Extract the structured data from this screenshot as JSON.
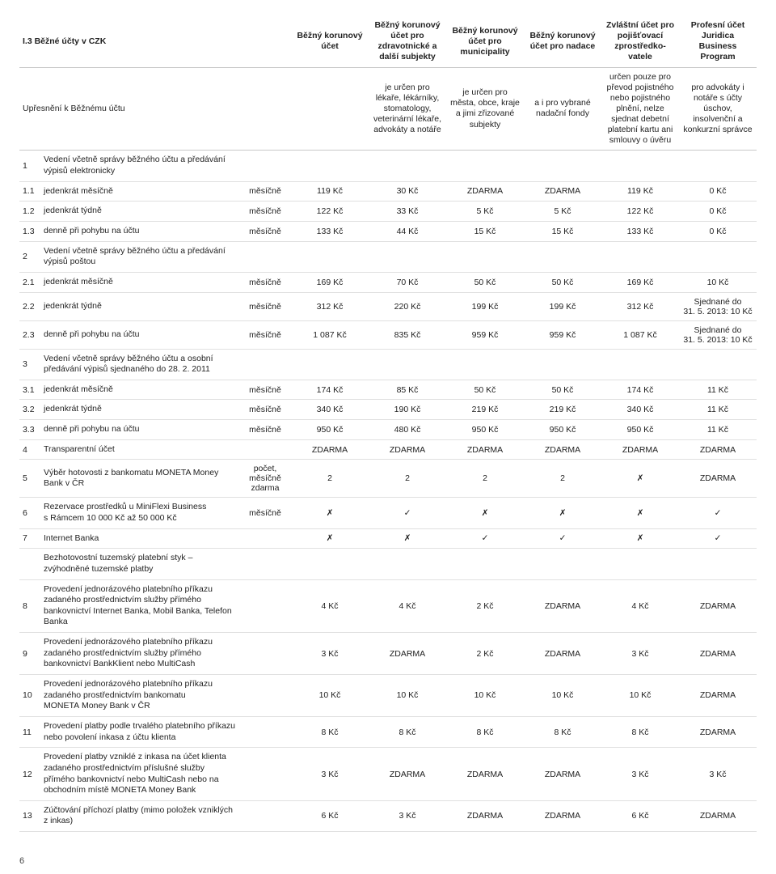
{
  "title": "I.3 Běžné účty v CZK",
  "subtitle": "Upřesnění k Běžnému účtu",
  "pageNumber": "6",
  "col_widths": {
    "num": 26,
    "desc": 260,
    "freq": 64,
    "val": 96
  },
  "columns": [
    {
      "head1": "Běžný korunový účet",
      "head2": ""
    },
    {
      "head1": "Běžný korunový účet pro zdravotnické a další subjekty",
      "head2": "je určen pro lékaře, lékárníky, stomatology, veterinární lékaře, advokáty a notáře"
    },
    {
      "head1": "Běžný korunový účet pro municipality",
      "head2": "je určen pro města, obce, kraje a jimi zřizované subjekty"
    },
    {
      "head1": "Běžný korunový účet pro nadace",
      "head2": "a i pro vybrané nadační fondy"
    },
    {
      "head1": "Zvláštní účet pro pojišťovací zprostředko­vatele",
      "head2": "určen pouze pro převod pojistného nebo pojistného plnění, nelze sjednat debetní platební kartu ani smlouvy o úvěru"
    },
    {
      "head1": "Profesní účet Juridica Business Program",
      "head2": "pro advokáty i notáře s účty úschov, insolvenční a konkurzní správce"
    }
  ],
  "rows": [
    {
      "n": "1",
      "desc": "Vedení včetně správy běžného účtu a předávání výpisů elektronicky",
      "freq": "",
      "v": [
        "",
        "",
        "",
        "",
        "",
        ""
      ]
    },
    {
      "n": "1.1",
      "desc": "jedenkrát měsíčně",
      "freq": "měsíčně",
      "v": [
        "119 Kč",
        "30 Kč",
        "ZDARMA",
        "ZDARMA",
        "119 Kč",
        "0 Kč"
      ]
    },
    {
      "n": "1.2",
      "desc": "jedenkrát týdně",
      "freq": "měsíčně",
      "v": [
        "122 Kč",
        "33 Kč",
        "5 Kč",
        "5 Kč",
        "122 Kč",
        "0 Kč"
      ]
    },
    {
      "n": "1.3",
      "desc": "denně při pohybu na účtu",
      "freq": "měsíčně",
      "v": [
        "133 Kč",
        "44 Kč",
        "15 Kč",
        "15 Kč",
        "133 Kč",
        "0 Kč"
      ]
    },
    {
      "n": "2",
      "desc": "Vedení včetně správy běžného účtu a předávání výpisů poštou",
      "freq": "",
      "v": [
        "",
        "",
        "",
        "",
        "",
        ""
      ]
    },
    {
      "n": "2.1",
      "desc": "jedenkrát měsíčně",
      "freq": "měsíčně",
      "v": [
        "169 Kč",
        "70 Kč",
        "50 Kč",
        "50 Kč",
        "169 Kč",
        "10 Kč"
      ]
    },
    {
      "n": "2.2",
      "desc": "jedenkrát týdně",
      "freq": "měsíčně",
      "v": [
        "312 Kč",
        "220 Kč",
        "199 Kč",
        "199 Kč",
        "312 Kč",
        "Sjednané do 31. 5. 2013: 10 Kč"
      ]
    },
    {
      "n": "2.3",
      "desc": "denně při pohybu na účtu",
      "freq": "měsíčně",
      "v": [
        "1 087 Kč",
        "835 Kč",
        "959 Kč",
        "959 Kč",
        "1 087 Kč",
        "Sjednané do 31. 5. 2013: 10 Kč"
      ]
    },
    {
      "n": "3",
      "desc": "Vedení včetně správy běžného účtu a osobní předávání výpisů sjednaného do 28. 2. 2011",
      "freq": "",
      "v": [
        "",
        "",
        "",
        "",
        "",
        ""
      ]
    },
    {
      "n": "3.1",
      "desc": "jedenkrát měsíčně",
      "freq": "měsíčně",
      "v": [
        "174 Kč",
        "85 Kč",
        "50 Kč",
        "50 Kč",
        "174 Kč",
        "11 Kč"
      ]
    },
    {
      "n": "3.2",
      "desc": "jedenkrát týdně",
      "freq": "měsíčně",
      "v": [
        "340 Kč",
        "190 Kč",
        "219 Kč",
        "219 Kč",
        "340 Kč",
        "11 Kč"
      ]
    },
    {
      "n": "3.3",
      "desc": "denně při pohybu na účtu",
      "freq": "měsíčně",
      "v": [
        "950 Kč",
        "480 Kč",
        "950 Kč",
        "950 Kč",
        "950 Kč",
        "11 Kč"
      ]
    },
    {
      "n": "4",
      "desc": "Transparentní účet",
      "freq": "",
      "v": [
        "ZDARMA",
        "ZDARMA",
        "ZDARMA",
        "ZDARMA",
        "ZDARMA",
        "ZDARMA"
      ]
    },
    {
      "n": "5",
      "desc": "Výběr hotovosti z bankomatu MONETA Money Bank v ČR",
      "freq": "počet, měsíčně zdarma",
      "v": [
        "2",
        "2",
        "2",
        "2",
        "✗",
        "ZDARMA"
      ]
    },
    {
      "n": "6",
      "desc": "Rezervace prostředků u MiniFlexi Business s Rámcem 10 000 Kč až 50 000 Kč",
      "freq": "měsíčně",
      "v": [
        "✗",
        "✓",
        "✗",
        "✗",
        "✗",
        "✓"
      ]
    },
    {
      "n": "7",
      "desc": "Internet Banka",
      "freq": "",
      "v": [
        "✗",
        "✗",
        "✓",
        "✓",
        "✗",
        "✓"
      ]
    },
    {
      "n": "",
      "desc": "Bezhotovostní tuzemský platební styk – zvýhodněné tuzemské platby",
      "freq": "",
      "v": [
        "",
        "",
        "",
        "",
        "",
        ""
      ]
    },
    {
      "n": "8",
      "desc": "Provedení jednorázového platebního příkazu zadaného prostřednictvím služby přímého bankovnictví Internet Banka, Mobil Banka, Telefon Banka",
      "freq": "",
      "v": [
        "4 Kč",
        "4 Kč",
        "2 Kč",
        "ZDARMA",
        "4 Kč",
        "ZDARMA"
      ]
    },
    {
      "n": "9",
      "desc": "Provedení jednorázového platebního příkazu zadaného prostřednictvím služby přímého bankovnictví BankKlient nebo MultiCash",
      "freq": "",
      "v": [
        "3 Kč",
        "ZDARMA",
        "2 Kč",
        "ZDARMA",
        "3 Kč",
        "ZDARMA"
      ]
    },
    {
      "n": "10",
      "desc": "Provedení jednorázového platebního příkazu zadaného prostřednictvím bankomatu MONETA Money Bank v ČR",
      "freq": "",
      "v": [
        "10 Kč",
        "10 Kč",
        "10 Kč",
        "10 Kč",
        "10 Kč",
        "ZDARMA"
      ]
    },
    {
      "n": "11",
      "desc": "Provedení platby podle trvalého platebního příkazu nebo povolení inkasa z účtu klienta",
      "freq": "",
      "v": [
        "8 Kč",
        "8 Kč",
        "8 Kč",
        "8 Kč",
        "8 Kč",
        "ZDARMA"
      ]
    },
    {
      "n": "12",
      "desc": "Provedení platby vzniklé z inkasa na účet klienta zadaného prostřednictvím příslušné služby přímého bankovnictví nebo MultiCash nebo na obchodním místě MONETA Money Bank",
      "freq": "",
      "v": [
        "3 Kč",
        "ZDARMA",
        "ZDARMA",
        "ZDARMA",
        "3 Kč",
        "3 Kč"
      ]
    },
    {
      "n": "13",
      "desc": "Zúčtování příchozí platby (mimo položek vzniklých z inkas)",
      "freq": "",
      "v": [
        "6 Kč",
        "3 Kč",
        "ZDARMA",
        "ZDARMA",
        "6 Kč",
        "ZDARMA"
      ]
    }
  ]
}
